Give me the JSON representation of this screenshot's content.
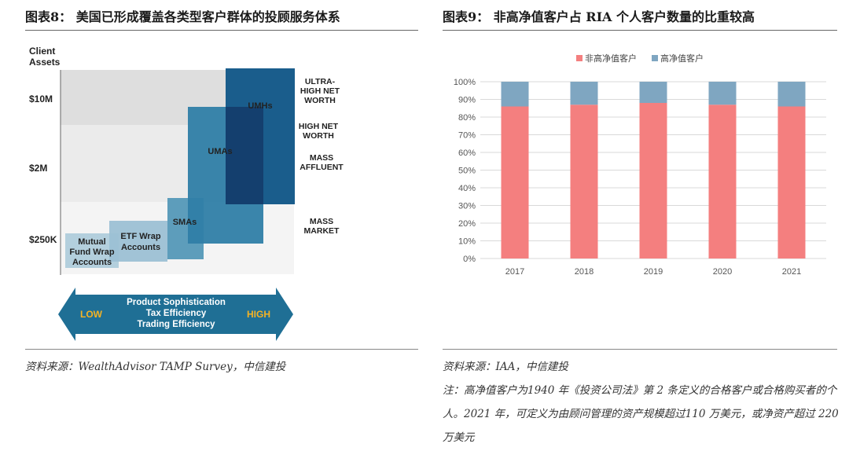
{
  "left": {
    "title": "图表8：  美国已形成覆盖各类型客户群体的投顾服务体系",
    "source": "资料来源：WealthAdvisor TAMP Survey，中信建投",
    "diagram": {
      "y_axis_label_line1": "Client",
      "y_axis_label_line2": "Assets",
      "ticks": [
        "$10M",
        "$2M",
        "$250K"
      ],
      "boxes": [
        {
          "lines": [
            "Mutual",
            "Fund Wrap",
            "Accounts"
          ]
        },
        {
          "lines": [
            "ETF Wrap",
            "Accounts"
          ]
        },
        {
          "lines": [
            "SMAs"
          ]
        },
        {
          "lines": [
            "UMAs"
          ]
        },
        {
          "lines": [
            "UMHs"
          ]
        }
      ],
      "segments": [
        {
          "lines": [
            "ULTRA-",
            "HIGH NET",
            "WORTH"
          ]
        },
        {
          "lines": [
            "HIGH NET",
            "WORTH"
          ]
        },
        {
          "lines": [
            "MASS",
            "AFFLUENT"
          ]
        },
        {
          "lines": [
            "MASS",
            "MARKET"
          ]
        }
      ],
      "arrow": {
        "low": "LOW",
        "high": "HIGH",
        "lines": [
          "Product Sophistication",
          "Tax Efficiency",
          "Trading Efficiency"
        ]
      },
      "colors": {
        "light": "#a8c8d8",
        "mid": "#5d9dbb",
        "deep": "#2f7ea6",
        "dark": "#1a4f80",
        "arrow": "#1f6f95",
        "accent": "#f5b324"
      }
    }
  },
  "right": {
    "title": "图表9：  非高净值客户占 RIA 个人客户数量的比重较高",
    "source": "资料来源：IAA，中信建投",
    "note": "注：高净值客户为1940 年《投资公司法》第 2 条定义的合格客户或合格购买者的个人。2021 年，可定义为由顾问管理的资产规模超过110 万美元，或净资产超过 220 万美元"
  },
  "chart_data": {
    "type": "bar",
    "stacked": true,
    "categories": [
      "2017",
      "2018",
      "2019",
      "2020",
      "2021"
    ],
    "series": [
      {
        "name": "非高净值客户",
        "values": [
          86,
          87,
          88,
          87,
          86
        ],
        "color": "#f47f7f"
      },
      {
        "name": "高净值客户",
        "values": [
          14,
          13,
          12,
          13,
          14
        ],
        "color": "#7fa6c1"
      }
    ],
    "ytick_labels": [
      "0%",
      "10%",
      "20%",
      "30%",
      "40%",
      "50%",
      "60%",
      "70%",
      "80%",
      "90%",
      "100%"
    ],
    "ylim": [
      0,
      100
    ],
    "grid": true,
    "legend": "top-center"
  }
}
